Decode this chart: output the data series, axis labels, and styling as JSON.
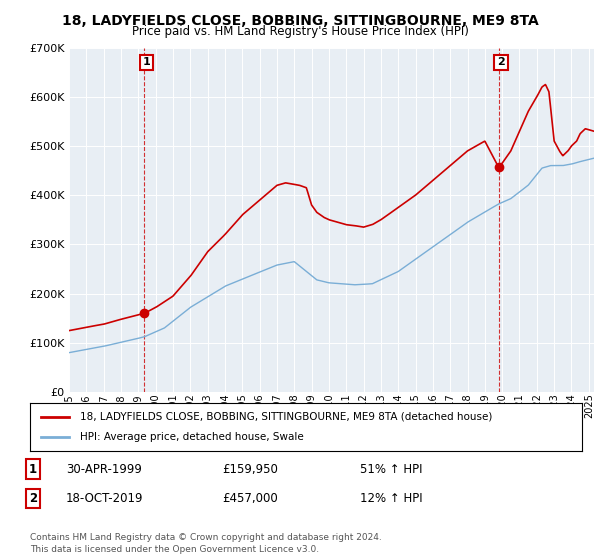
{
  "title": "18, LADYFIELDS CLOSE, BOBBING, SITTINGBOURNE, ME9 8TA",
  "subtitle": "Price paid vs. HM Land Registry's House Price Index (HPI)",
  "legend_line1": "18, LADYFIELDS CLOSE, BOBBING, SITTINGBOURNE, ME9 8TA (detached house)",
  "legend_line2": "HPI: Average price, detached house, Swale",
  "annotation1_label": "1",
  "annotation1_date": "30-APR-1999",
  "annotation1_price": "£159,950",
  "annotation1_hpi": "51% ↑ HPI",
  "annotation2_label": "2",
  "annotation2_date": "18-OCT-2019",
  "annotation2_price": "£457,000",
  "annotation2_hpi": "12% ↑ HPI",
  "footer": "Contains HM Land Registry data © Crown copyright and database right 2024.\nThis data is licensed under the Open Government Licence v3.0.",
  "sale1_x": 1999.33,
  "sale1_y": 159950,
  "sale2_x": 2019.79,
  "sale2_y": 457000,
  "ylim": [
    0,
    700000
  ],
  "xlim": [
    1995.0,
    2025.3
  ],
  "yticks": [
    0,
    100000,
    200000,
    300000,
    400000,
    500000,
    600000,
    700000
  ],
  "xticks": [
    1995,
    1996,
    1997,
    1998,
    1999,
    2000,
    2001,
    2002,
    2003,
    2004,
    2005,
    2006,
    2007,
    2008,
    2009,
    2010,
    2011,
    2012,
    2013,
    2014,
    2015,
    2016,
    2017,
    2018,
    2019,
    2020,
    2021,
    2022,
    2023,
    2024,
    2025
  ],
  "red_color": "#cc0000",
  "blue_color": "#7aaed6",
  "bg_color": "#ffffff",
  "plot_bg_color": "#e8eef4",
  "grid_color": "#ffffff"
}
